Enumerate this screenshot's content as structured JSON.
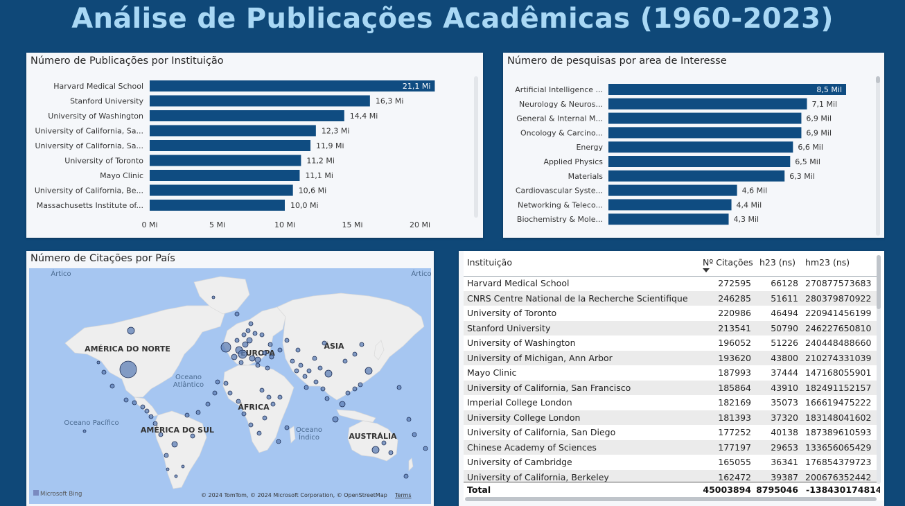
{
  "dashboard": {
    "title": "Análise de Publicações Acadêmicas (1960-2023)"
  },
  "colors": {
    "background": "#0f4878",
    "bar": "#0f4c81",
    "title": "#a9d8f5",
    "ocean": "#a6c6f1",
    "land": "#eeeeee",
    "bubble": "#5d7fb5"
  },
  "institutions_chart": {
    "title": "Número de Publicações por Instituição",
    "chart_data": {
      "type": "bar",
      "orientation": "horizontal",
      "categories": [
        "Harvard Medical School",
        "Stanford University",
        "University of Washington",
        "University of California, Sa...",
        "University of California, Sa...",
        "University of Toronto",
        "Mayo Clinic",
        "University of California, Be...",
        "Massachusetts Institute of..."
      ],
      "values": [
        21.1,
        16.3,
        14.4,
        12.3,
        11.9,
        11.2,
        11.1,
        10.6,
        10.0
      ],
      "value_labels": [
        "21,1 Mi",
        "16,3 Mi",
        "14,4 Mi",
        "12,3 Mi",
        "11,9 Mi",
        "11,2 Mi",
        "11,1 Mi",
        "10,6 Mi",
        "10,0 Mi"
      ],
      "xlim": [
        0,
        20
      ],
      "x_ticks": [
        0,
        5,
        10,
        15,
        20
      ],
      "x_tick_labels": [
        "0 Mi",
        "5 Mi",
        "10 Mi",
        "15 Mi",
        "20 Mi"
      ]
    }
  },
  "areas_chart": {
    "title": "Número de pesquisas por area de Interesse",
    "chart_data": {
      "type": "bar",
      "orientation": "horizontal",
      "categories": [
        "Artificial Intelligence ...",
        "Neurology & Neuros...",
        "General & Internal M...",
        "Oncology & Carcino...",
        "Energy",
        "Applied Physics",
        "Materials",
        "Cardiovascular Syste...",
        "Networking & Teleco...",
        "Biochemistry & Mole..."
      ],
      "values": [
        8.5,
        7.1,
        6.9,
        6.9,
        6.6,
        6.5,
        6.3,
        4.6,
        4.4,
        4.3
      ],
      "value_labels": [
        "8,5 Mil",
        "7,1 Mil",
        "6,9 Mil",
        "6,9 Mil",
        "6,6 Mil",
        "6,5 Mil",
        "6,3 Mil",
        "4,6 Mil",
        "4,4 Mil",
        "4,3 Mil"
      ]
    }
  },
  "map_chart": {
    "title": "Número de Citações por País",
    "labels": {
      "arctic": "Oceano\nÁrtico",
      "arctic_right": "Oceano\nÁrtico",
      "north_america": "AMÉRICA DO NORTE",
      "europe": "EUROPA",
      "asia": "ÁSIA",
      "africa": "ÁFRICA",
      "south_america": "AMÉRICA DO SUL",
      "australia": "AUSTRÁLIA",
      "atlantic": "Oceano\nAtlântico",
      "pacific": "Oceano Pacífico",
      "indian": "Oceano\nÍndico"
    },
    "attribution": "© 2024 TomTom, © 2024 Microsoft Corporation, © OpenStreetMap",
    "terms": "Terms",
    "brand": "Microsoft Bing"
  },
  "table": {
    "columns": [
      "Instituição",
      "Nº Citações",
      "h23 (ns)",
      "hm23 (ns)"
    ],
    "rows": [
      [
        "Harvard Medical School",
        "272595",
        "66128",
        "270877573683"
      ],
      [
        "CNRS Centre National de la Recherche Scientifique",
        "246285",
        "51611",
        "280379870922"
      ],
      [
        "University of Toronto",
        "220986",
        "46494",
        "220941456199"
      ],
      [
        "Stanford University",
        "213541",
        "50790",
        "246227650810"
      ],
      [
        "University of Washington",
        "196052",
        "51226",
        "240448488660"
      ],
      [
        "University of Michigan, Ann Arbor",
        "193620",
        "43800",
        "210274331039"
      ],
      [
        "Mayo Clinic",
        "187993",
        "37444",
        "147168055901"
      ],
      [
        "University of California, San Francisco",
        "185864",
        "43910",
        "182491152157"
      ],
      [
        "Imperial College London",
        "182169",
        "35073",
        "166619475222"
      ],
      [
        "University College London",
        "181393",
        "37320",
        "183148041602"
      ],
      [
        "University of California, San Diego",
        "177252",
        "40138",
        "187389610593"
      ],
      [
        "Chinese Academy of Sciences",
        "177197",
        "29653",
        "133656065429"
      ],
      [
        "University of Cambridge",
        "165055",
        "36341",
        "176854379723"
      ],
      [
        "University of California, Berkeley",
        "162472",
        "39387",
        "200676352442"
      ]
    ],
    "total": [
      "Total",
      "45003894",
      "8795046",
      "-138430174814"
    ]
  }
}
